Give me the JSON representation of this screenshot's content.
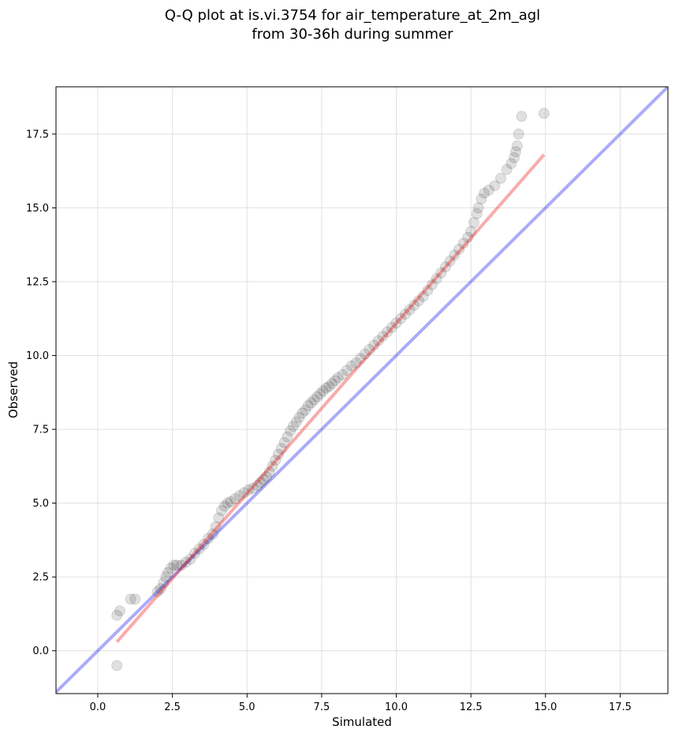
{
  "chart_data": {
    "type": "scatter",
    "title_lines": [
      "Q-Q plot at is.vi.3754 for air_temperature_at_2m_agl",
      "from 30-36h during summer"
    ],
    "xlabel": "Simulated",
    "ylabel": "Observed",
    "xlim": [
      -1.4,
      19.1
    ],
    "ylim": [
      -1.45,
      19.1
    ],
    "xticks": [
      0.0,
      2.5,
      5.0,
      7.5,
      10.0,
      12.5,
      15.0,
      17.5
    ],
    "xtick_labels": [
      "0.0",
      "2.5",
      "5.0",
      "7.5",
      "10.0",
      "12.5",
      "15.0",
      "17.5"
    ],
    "yticks": [
      0.0,
      2.5,
      5.0,
      7.5,
      10.0,
      12.5,
      15.0,
      17.5
    ],
    "ytick_labels": [
      "0.0",
      "2.5",
      "5.0",
      "7.5",
      "10.0",
      "12.5",
      "15.0",
      "17.5"
    ],
    "grid": true,
    "colors": {
      "points": "#000000",
      "identity_line": "#0000ee",
      "fit_line": "#ee0000"
    },
    "series": [
      {
        "kind": "quantile-points",
        "x": [
          0.64,
          0.64,
          0.74,
          1.1,
          1.25,
          2.0,
          2.1,
          2.2,
          2.28,
          2.35,
          2.45,
          2.55,
          2.65,
          2.8,
          2.95,
          3.1,
          3.25,
          3.4,
          3.55,
          3.7,
          3.85,
          3.95,
          4.05,
          4.15,
          4.25,
          4.35,
          4.45,
          4.6,
          4.75,
          4.9,
          5.05,
          5.2,
          5.35,
          5.45,
          5.55,
          5.65,
          5.75,
          5.85,
          5.95,
          6.05,
          6.15,
          6.25,
          6.35,
          6.45,
          6.55,
          6.65,
          6.75,
          6.85,
          6.95,
          7.05,
          7.15,
          7.25,
          7.35,
          7.45,
          7.55,
          7.65,
          7.75,
          7.85,
          7.95,
          8.05,
          8.2,
          8.35,
          8.5,
          8.65,
          8.8,
          8.95,
          9.1,
          9.25,
          9.4,
          9.55,
          9.7,
          9.85,
          10.0,
          10.15,
          10.3,
          10.45,
          10.6,
          10.75,
          10.9,
          11.05,
          11.2,
          11.35,
          11.5,
          11.65,
          11.8,
          11.95,
          12.1,
          12.25,
          12.4,
          12.5,
          12.6,
          12.7,
          12.75,
          12.85,
          12.95,
          13.1,
          13.3,
          13.5,
          13.7,
          13.85,
          13.95,
          14.0,
          14.05,
          14.1,
          14.2,
          14.95
        ],
        "y": [
          -0.5,
          1.2,
          1.35,
          1.75,
          1.75,
          2.0,
          2.1,
          2.3,
          2.5,
          2.65,
          2.8,
          2.9,
          2.9,
          2.9,
          3.0,
          3.1,
          3.3,
          3.45,
          3.6,
          3.8,
          3.95,
          4.2,
          4.5,
          4.75,
          4.9,
          5.0,
          5.05,
          5.15,
          5.25,
          5.35,
          5.45,
          5.5,
          5.6,
          5.7,
          5.8,
          5.9,
          6.05,
          6.25,
          6.45,
          6.65,
          6.85,
          7.05,
          7.25,
          7.45,
          7.6,
          7.75,
          7.9,
          8.05,
          8.15,
          8.3,
          8.4,
          8.5,
          8.6,
          8.7,
          8.8,
          8.9,
          8.95,
          9.05,
          9.15,
          9.25,
          9.35,
          9.5,
          9.65,
          9.75,
          9.9,
          10.05,
          10.2,
          10.35,
          10.5,
          10.65,
          10.8,
          10.95,
          11.1,
          11.25,
          11.4,
          11.55,
          11.7,
          11.85,
          12.0,
          12.2,
          12.4,
          12.6,
          12.8,
          13.0,
          13.2,
          13.4,
          13.6,
          13.8,
          14.0,
          14.2,
          14.5,
          14.8,
          15.0,
          15.3,
          15.5,
          15.6,
          15.75,
          16.0,
          16.3,
          16.5,
          16.7,
          16.9,
          17.1,
          17.5,
          18.1,
          18.2
        ]
      },
      {
        "kind": "identity-line",
        "x": [
          -1.4,
          19.1
        ],
        "y": [
          -1.4,
          19.1
        ]
      },
      {
        "kind": "fit-line",
        "x": [
          0.64,
          14.95
        ],
        "y": [
          0.3,
          16.8
        ]
      }
    ]
  }
}
